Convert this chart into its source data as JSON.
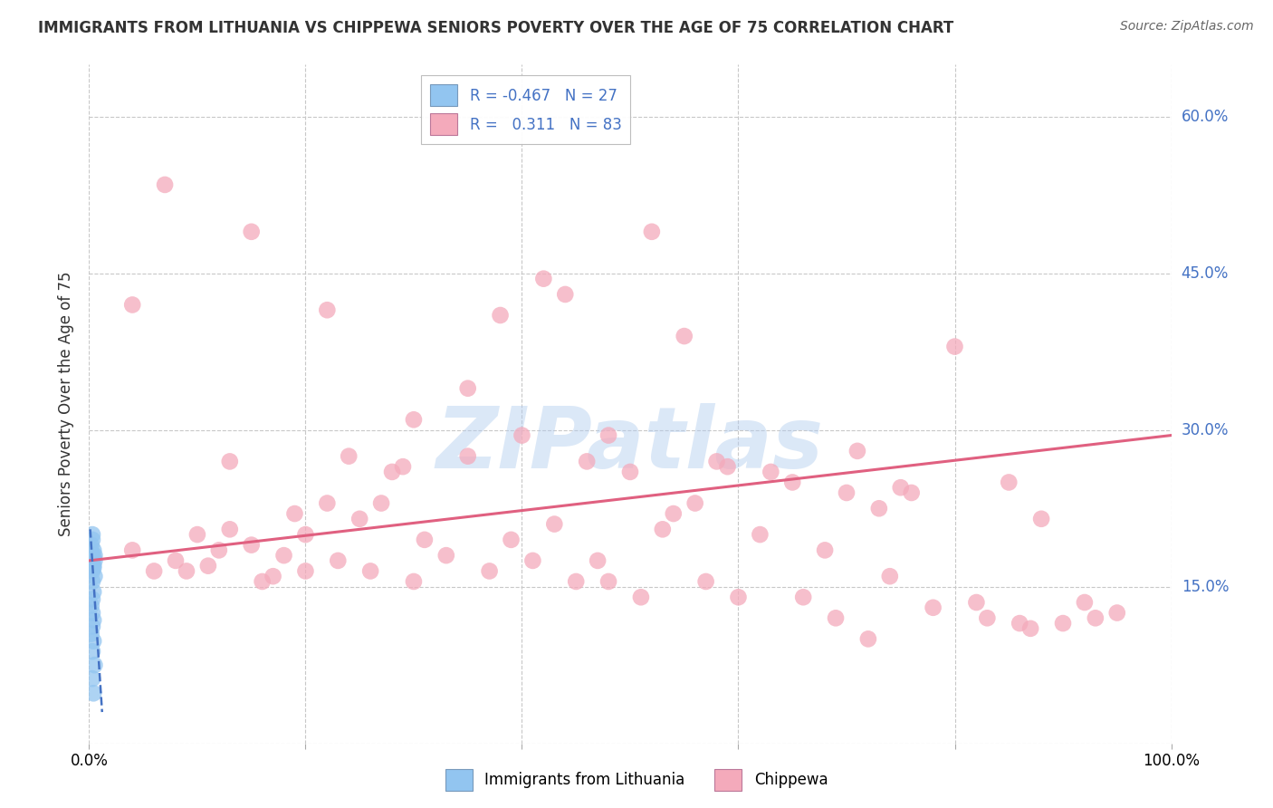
{
  "title": "IMMIGRANTS FROM LITHUANIA VS CHIPPEWA SENIORS POVERTY OVER THE AGE OF 75 CORRELATION CHART",
  "source": "Source: ZipAtlas.com",
  "ylabel": "Seniors Poverty Over the Age of 75",
  "xlim": [
    0,
    1.0
  ],
  "ylim": [
    0,
    0.65
  ],
  "yticks": [
    0.0,
    0.15,
    0.3,
    0.45,
    0.6
  ],
  "ytick_labels": [
    "",
    "15.0%",
    "30.0%",
    "45.0%",
    "60.0%"
  ],
  "xtick_positions": [
    0.0,
    0.2,
    0.4,
    0.6,
    0.8,
    1.0
  ],
  "xtick_labels": [
    "0.0%",
    "",
    "",
    "",
    "",
    "100.0%"
  ],
  "R_blue": -0.467,
  "N_blue": 27,
  "R_pink": 0.311,
  "N_pink": 83,
  "blue_color": "#92C5F0",
  "pink_color": "#F4AABB",
  "line_blue_color": "#4472C4",
  "line_pink_color": "#E06080",
  "watermark": "ZIPatlas",
  "blue_scatter_x": [
    0.003,
    0.004,
    0.002,
    0.005,
    0.003,
    0.004,
    0.002,
    0.003,
    0.005,
    0.004,
    0.003,
    0.002,
    0.004,
    0.003,
    0.005,
    0.004,
    0.003,
    0.002,
    0.003,
    0.004,
    0.003,
    0.002,
    0.004,
    0.003,
    0.005,
    0.003,
    0.004
  ],
  "blue_scatter_y": [
    0.195,
    0.185,
    0.175,
    0.18,
    0.165,
    0.17,
    0.19,
    0.2,
    0.175,
    0.168,
    0.172,
    0.183,
    0.178,
    0.155,
    0.16,
    0.145,
    0.138,
    0.132,
    0.125,
    0.118,
    0.112,
    0.105,
    0.098,
    0.088,
    0.075,
    0.062,
    0.048
  ],
  "pink_scatter_x": [
    0.04,
    0.06,
    0.08,
    0.1,
    0.12,
    0.04,
    0.07,
    0.09,
    0.11,
    0.13,
    0.15,
    0.17,
    0.19,
    0.13,
    0.16,
    0.18,
    0.2,
    0.22,
    0.24,
    0.26,
    0.28,
    0.3,
    0.2,
    0.23,
    0.25,
    0.27,
    0.29,
    0.31,
    0.33,
    0.35,
    0.37,
    0.39,
    0.41,
    0.43,
    0.45,
    0.47,
    0.5,
    0.53,
    0.56,
    0.59,
    0.62,
    0.65,
    0.68,
    0.71,
    0.74,
    0.48,
    0.51,
    0.54,
    0.57,
    0.6,
    0.63,
    0.66,
    0.69,
    0.72,
    0.75,
    0.78,
    0.82,
    0.86,
    0.9,
    0.8,
    0.85,
    0.88,
    0.92,
    0.95,
    0.15,
    0.22,
    0.38,
    0.52,
    0.44,
    0.35,
    0.3,
    0.42,
    0.55,
    0.58,
    0.76,
    0.83,
    0.87,
    0.93,
    0.4,
    0.46,
    0.48,
    0.7,
    0.73
  ],
  "pink_scatter_y": [
    0.185,
    0.165,
    0.175,
    0.2,
    0.185,
    0.42,
    0.535,
    0.165,
    0.17,
    0.205,
    0.19,
    0.16,
    0.22,
    0.27,
    0.155,
    0.18,
    0.165,
    0.23,
    0.275,
    0.165,
    0.26,
    0.155,
    0.2,
    0.175,
    0.215,
    0.23,
    0.265,
    0.195,
    0.18,
    0.275,
    0.165,
    0.195,
    0.175,
    0.21,
    0.155,
    0.175,
    0.26,
    0.205,
    0.23,
    0.265,
    0.2,
    0.25,
    0.185,
    0.28,
    0.16,
    0.295,
    0.14,
    0.22,
    0.155,
    0.14,
    0.26,
    0.14,
    0.12,
    0.1,
    0.245,
    0.13,
    0.135,
    0.115,
    0.115,
    0.38,
    0.25,
    0.215,
    0.135,
    0.125,
    0.49,
    0.415,
    0.41,
    0.49,
    0.43,
    0.34,
    0.31,
    0.445,
    0.39,
    0.27,
    0.24,
    0.12,
    0.11,
    0.12,
    0.295,
    0.27,
    0.155,
    0.24,
    0.225
  ],
  "pink_line_x0": 0.0,
  "pink_line_y0": 0.175,
  "pink_line_x1": 1.0,
  "pink_line_y1": 0.295,
  "blue_line_x0": 0.001,
  "blue_line_y0": 0.205,
  "blue_line_x1": 0.012,
  "blue_line_y1": 0.03
}
